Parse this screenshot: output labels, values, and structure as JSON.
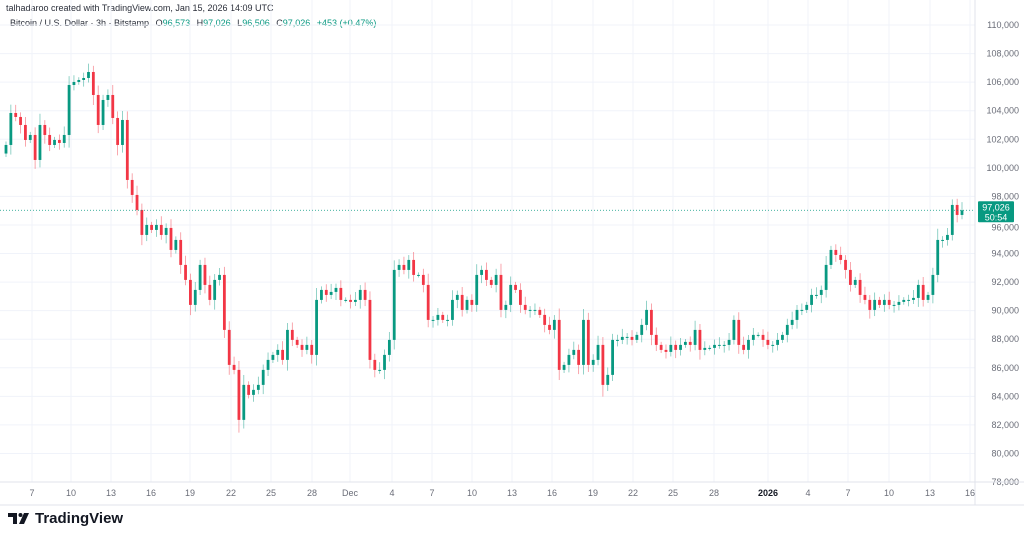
{
  "credit": "talhadaroo created with TradingView.com, Jan 15, 2026 14:09 UTC",
  "legend": {
    "symbol": "Bitcoin / U.S. Dollar · 3h · Bitstamp",
    "o_label": "O",
    "o": "96,573",
    "h_label": "H",
    "h": "97,026",
    "l_label": "L",
    "l": "96,506",
    "c_label": "C",
    "c": "97,026",
    "change": "+453 (+0.47%)"
  },
  "price_tag": {
    "price": "97,026",
    "countdown": "50:54"
  },
  "brand": "TradingView",
  "colors": {
    "up": "#089981",
    "down": "#f23645",
    "grid": "#f0f3fa"
  },
  "chart_data": {
    "type": "candlestick",
    "title": "Bitcoin / U.S. Dollar · 3h · Bitstamp",
    "ylim": [
      78000,
      110000
    ],
    "y_ticks": [
      "110,000",
      "108,000",
      "106,000",
      "104,000",
      "102,000",
      "100,000",
      "98,000",
      "96,000",
      "94,000",
      "92,000",
      "90,000",
      "88,000",
      "86,000",
      "84,000",
      "82,000",
      "80,000",
      "78,000"
    ],
    "x_ticks": [
      "7",
      "10",
      "13",
      "16",
      "19",
      "22",
      "25",
      "28",
      "Dec",
      "4",
      "7",
      "10",
      "13",
      "16",
      "19",
      "22",
      "25",
      "28",
      "2026",
      "4",
      "7",
      "10",
      "13",
      "16"
    ],
    "last_price": 97026,
    "closes": [
      101600,
      103840,
      103560,
      103000,
      101950,
      102300,
      100550,
      103000,
      102300,
      101600,
      101950,
      101740,
      102300,
      105800,
      106010,
      106150,
      106290,
      106710,
      105100,
      103000,
      104750,
      105100,
      103490,
      101600,
      103350,
      99150,
      98100,
      97050,
      95300,
      96000,
      95650,
      96000,
      95300,
      95790,
      94250,
      94950,
      93200,
      92150,
      90400,
      91450,
      93200,
      91800,
      90750,
      92150,
      92500,
      88650,
      86200,
      85850,
      82350,
      84800,
      84100,
      84450,
      84800,
      85850,
      86550,
      86900,
      87250,
      86550,
      88650,
      87950,
      87600,
      87250,
      87600,
      86900,
      90750,
      91450,
      91100,
      91310,
      91590,
      90750,
      90750,
      90610,
      90750,
      91450,
      90750,
      86550,
      85850,
      85850,
      86900,
      87950,
      92850,
      93200,
      92850,
      93550,
      92500,
      92500,
      91800,
      89350,
      89350,
      89700,
      89350,
      89350,
      90750,
      91100,
      90050,
      90750,
      90400,
      92500,
      92850,
      92150,
      91800,
      92500,
      90050,
      90400,
      91800,
      91450,
      90400,
      90050,
      90050,
      90050,
      89700,
      89000,
      88650,
      89350,
      85850,
      86200,
      86900,
      87250,
      86200,
      89350,
      86200,
      86550,
      87600,
      84800,
      85500,
      87950,
      87950,
      88160,
      88160,
      87950,
      88300,
      89000,
      90050,
      88300,
      87600,
      87250,
      87110,
      87600,
      87250,
      87600,
      87810,
      87600,
      88650,
      87250,
      87390,
      87390,
      87600,
      87600,
      87600,
      87950,
      89350,
      87600,
      87250,
      87950,
      88300,
      88300,
      87950,
      87600,
      87600,
      87950,
      88300,
      89000,
      89350,
      90050,
      90050,
      90400,
      91100,
      91100,
      91450,
      93200,
      94250,
      93900,
      93550,
      92850,
      91800,
      92150,
      91100,
      90750,
      90050,
      90750,
      90400,
      90750,
      90400,
      90400,
      90610,
      90750,
      90750,
      90890,
      91800,
      90750,
      91100,
      92500,
      94950,
      94950,
      95300,
      97400,
      96700,
      97026
    ]
  }
}
